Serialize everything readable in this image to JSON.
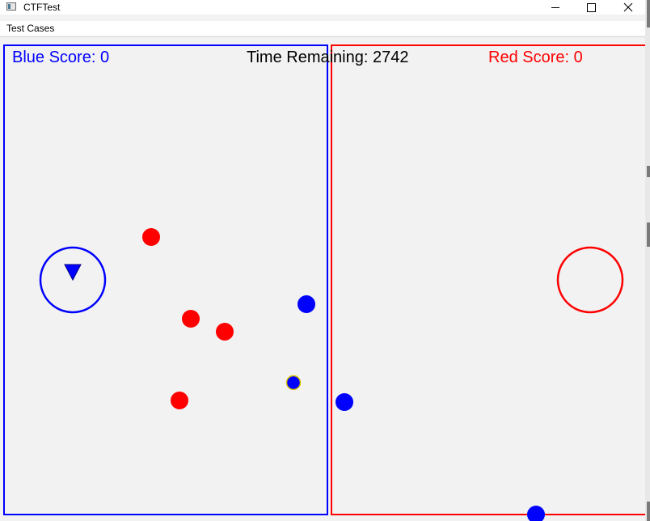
{
  "window": {
    "title": "CTFTest",
    "controls": {
      "minimize": "minimize",
      "maximize": "maximize",
      "close": "close"
    }
  },
  "menu": {
    "items": [
      "Test Cases"
    ]
  },
  "hud": {
    "blue_score": "Blue Score: 0",
    "time_remaining": "Time Remaining: 2742",
    "red_score": "Red Score: 0"
  },
  "colors": {
    "blue_team": "#0000ff",
    "red_team": "#ff0000",
    "flag_carrier_outline": "#d8c200",
    "field_background": "#f2f2f2"
  },
  "game": {
    "blue_flag_marker": "triangle-down",
    "blue_players": 3,
    "red_players": 4,
    "blue_flag_carriers": 1
  }
}
